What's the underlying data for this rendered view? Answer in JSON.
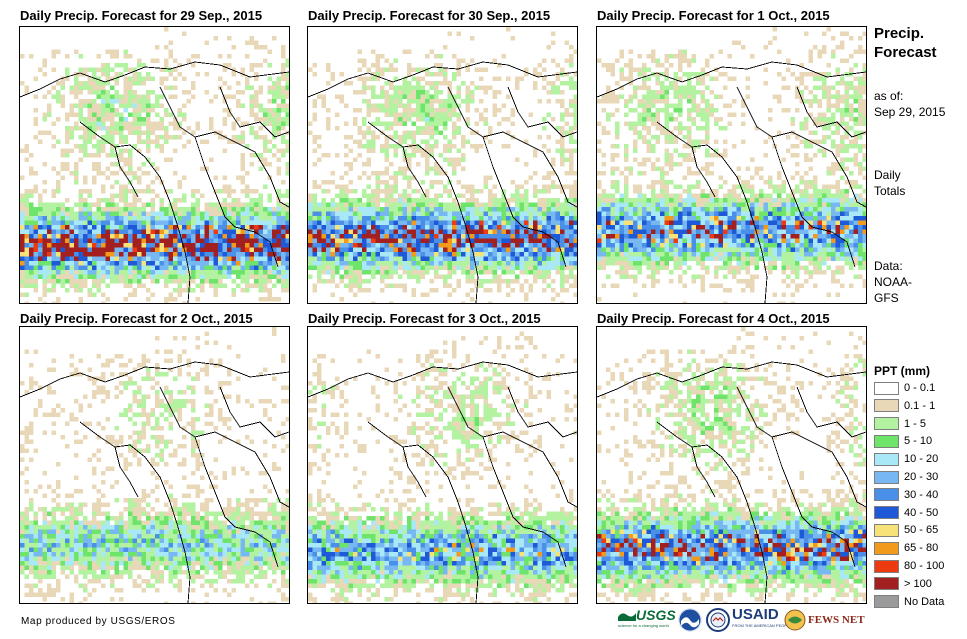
{
  "panels": [
    {
      "title": "Daily Precip. Forecast for 29 Sep., 2015",
      "seed": 11,
      "intensity": 1.15,
      "shift": 0
    },
    {
      "title": "Daily Precip. Forecast for 30 Sep., 2015",
      "seed": 23,
      "intensity": 1.1,
      "shift": -10
    },
    {
      "title": "Daily Precip. Forecast for 1 Oct., 2015",
      "seed": 37,
      "intensity": 1.0,
      "shift": -20
    },
    {
      "title": "Daily Precip. Forecast for 2 Oct., 2015",
      "seed": 41,
      "intensity": 0.7,
      "shift": 0
    },
    {
      "title": "Daily Precip. Forecast for 3 Oct., 2015",
      "seed": 53,
      "intensity": 0.9,
      "shift": 10
    },
    {
      "title": "Daily Precip. Forecast for 4 Oct., 2015",
      "seed": 67,
      "intensity": 1.05,
      "shift": 5
    }
  ],
  "sidebar": {
    "title_line1": "Precip.",
    "title_line2": "Forecast",
    "asof_line1": "as of:",
    "asof_line2": "Sep 29, 2015",
    "daily_line1": "Daily",
    "daily_line2": "Totals",
    "data_line1": "Data:",
    "data_line2": "NOAA-",
    "data_line3": "GFS"
  },
  "legend": {
    "title": "PPT (mm)",
    "items": [
      {
        "label": "0 - 0.1",
        "color": "#ffffff"
      },
      {
        "label": "0.1 - 1",
        "color": "#e9d8b8"
      },
      {
        "label": "1 - 5",
        "color": "#b3f2a0"
      },
      {
        "label": "5 - 10",
        "color": "#6ee46b"
      },
      {
        "label": "10 - 20",
        "color": "#a8e8f7"
      },
      {
        "label": "20 - 30",
        "color": "#78b8f2"
      },
      {
        "label": "30 - 40",
        "color": "#4a8fe8"
      },
      {
        "label": "40 - 50",
        "color": "#1e5ad8"
      },
      {
        "label": "50 - 65",
        "color": "#f7e27a"
      },
      {
        "label": "65 - 80",
        "color": "#f29a1c"
      },
      {
        "label": "80 - 100",
        "color": "#ee3a10"
      },
      {
        "label": "> 100",
        "color": "#a32020"
      },
      {
        "label": "No Data",
        "color": "#9a9a9a"
      }
    ]
  },
  "footer": {
    "credit": "Map produced by USGS/EROS",
    "logo_usgs": "USGS",
    "logo_usgs_tagline": "science for a changing world",
    "logo_usaid": "USAID",
    "logo_usaid_tagline": "FROM THE AMERICAN PEOPLE",
    "logo_fewsnet": "FEWS NET"
  }
}
